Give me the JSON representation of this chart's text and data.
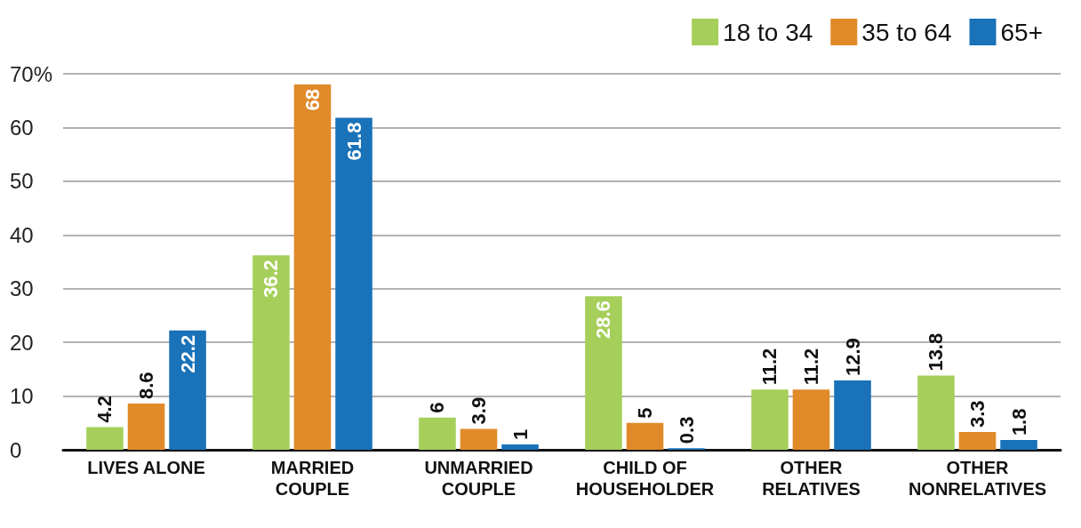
{
  "chart_data": {
    "type": "bar",
    "categories": [
      "LIVES ALONE",
      "MARRIED\nCOUPLE",
      "UNMARRIED\nCOUPLE",
      "CHILD OF\nHOUSEHOLDER",
      "OTHER\nRELATIVES",
      "OTHER\nNONRELATIVES"
    ],
    "series": [
      {
        "name": "18 to 34",
        "color": "#a5cf5a",
        "values": [
          4.2,
          36.2,
          6,
          28.6,
          11.2,
          13.8
        ]
      },
      {
        "name": "35 to 64",
        "color": "#e08a2a",
        "values": [
          8.6,
          68,
          3.9,
          5,
          11.2,
          3.3
        ]
      },
      {
        "name": "65+",
        "color": "#1a72b8",
        "values": [
          22.2,
          61.8,
          1,
          0.3,
          12.9,
          1.8
        ]
      }
    ],
    "ylim": [
      0,
      70
    ],
    "yticks": [
      0,
      10,
      20,
      30,
      40,
      50,
      60,
      {
        "value": 70,
        "label": "70%"
      }
    ],
    "grid": "y",
    "legend": "top right",
    "data_labels": true
  }
}
